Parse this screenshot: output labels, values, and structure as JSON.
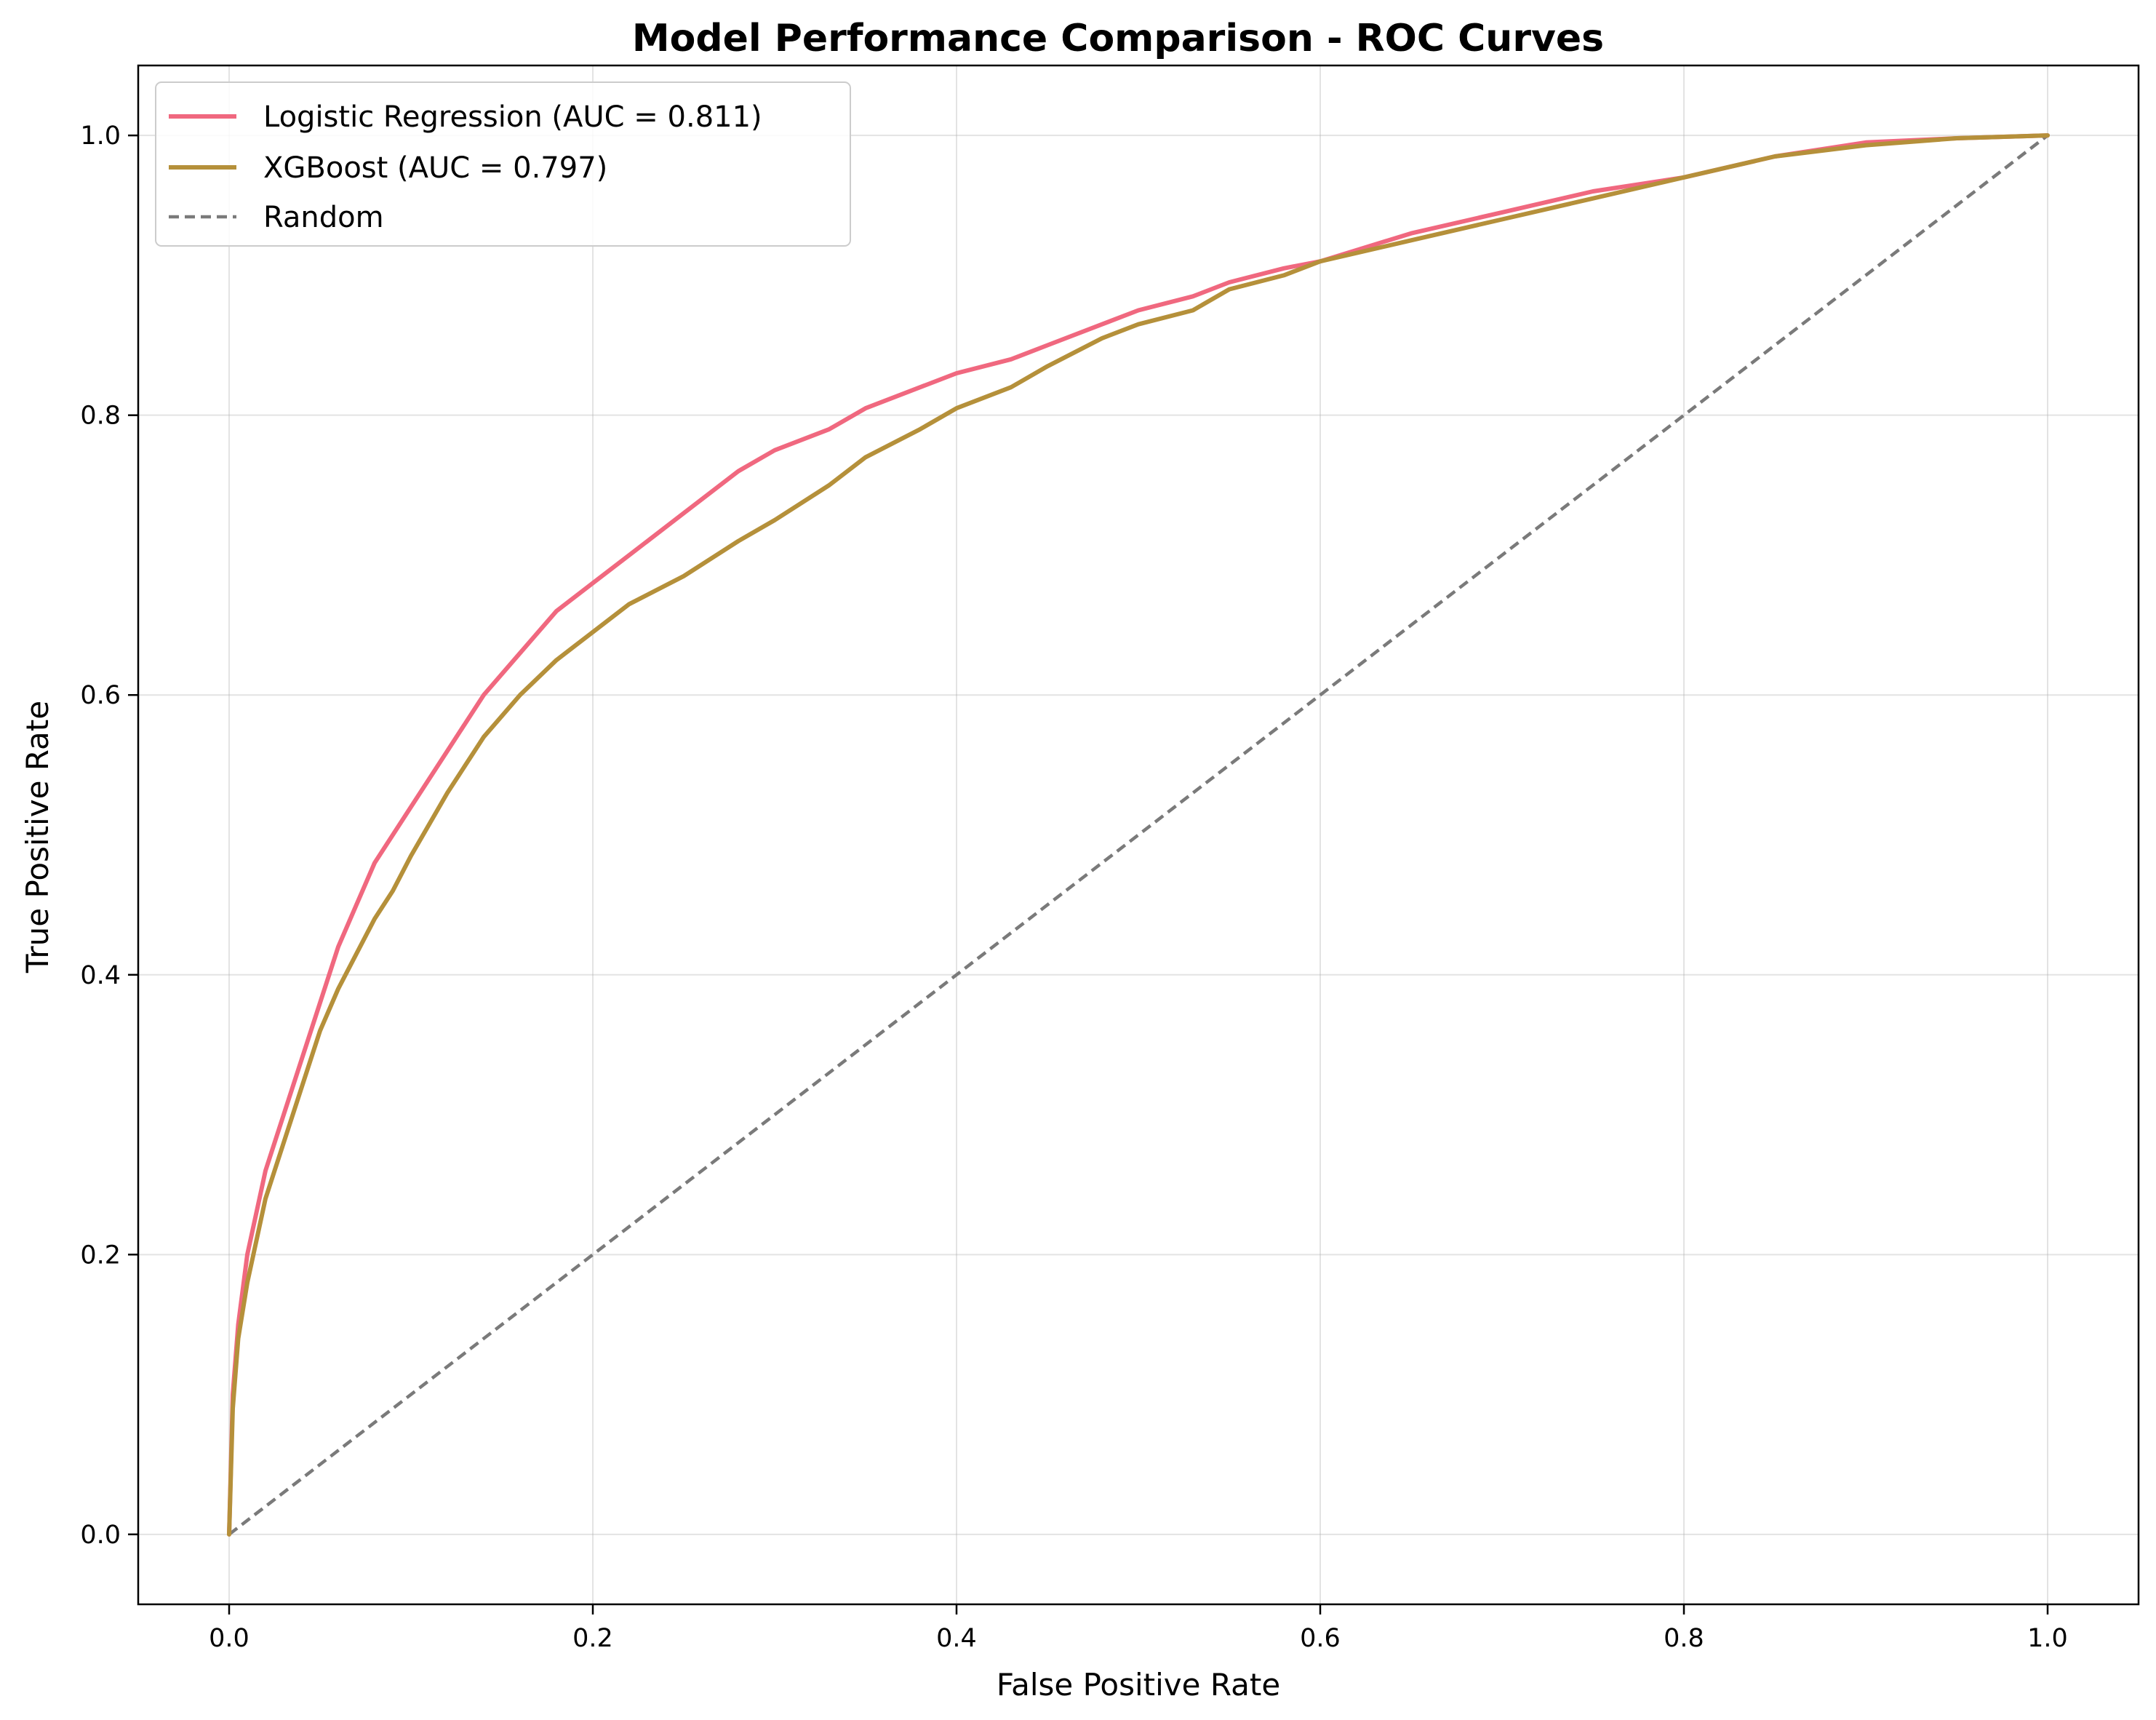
{
  "chart_data": {
    "type": "line",
    "title": "Model Performance Comparison - ROC Curves",
    "xlabel": "False Positive Rate",
    "ylabel": "True Positive Rate",
    "xlim": [
      -0.05,
      1.05
    ],
    "ylim": [
      -0.05,
      1.05
    ],
    "xticks": [
      0.0,
      0.2,
      0.4,
      0.6,
      0.8,
      1.0
    ],
    "yticks": [
      0.0,
      0.2,
      0.4,
      0.6,
      0.8,
      1.0
    ],
    "xtick_labels": [
      "0.0",
      "0.2",
      "0.4",
      "0.6",
      "0.8",
      "1.0"
    ],
    "ytick_labels": [
      "0.0",
      "0.2",
      "0.4",
      "0.6",
      "0.8",
      "1.0"
    ],
    "grid": true,
    "legend_position": "top-left",
    "series": [
      {
        "name": "Logistic Regression (AUC = 0.811)",
        "color": "#f0687f",
        "style": "solid",
        "x": [
          0,
          0.002,
          0.005,
          0.01,
          0.015,
          0.02,
          0.03,
          0.04,
          0.05,
          0.06,
          0.07,
          0.08,
          0.09,
          0.1,
          0.12,
          0.14,
          0.16,
          0.18,
          0.2,
          0.22,
          0.25,
          0.28,
          0.3,
          0.33,
          0.35,
          0.38,
          0.4,
          0.43,
          0.45,
          0.48,
          0.5,
          0.53,
          0.55,
          0.58,
          0.6,
          0.65,
          0.7,
          0.75,
          0.8,
          0.85,
          0.9,
          0.95,
          1.0
        ],
        "y": [
          0,
          0.1,
          0.15,
          0.2,
          0.23,
          0.26,
          0.3,
          0.34,
          0.38,
          0.42,
          0.45,
          0.48,
          0.5,
          0.52,
          0.56,
          0.6,
          0.63,
          0.66,
          0.68,
          0.7,
          0.73,
          0.76,
          0.775,
          0.79,
          0.805,
          0.82,
          0.83,
          0.84,
          0.85,
          0.865,
          0.875,
          0.885,
          0.895,
          0.905,
          0.91,
          0.93,
          0.945,
          0.96,
          0.97,
          0.985,
          0.995,
          0.998,
          1.0
        ]
      },
      {
        "name": "XGBoost (AUC = 0.797)",
        "color": "#b5903a",
        "style": "solid",
        "x": [
          0,
          0.002,
          0.005,
          0.01,
          0.015,
          0.02,
          0.03,
          0.04,
          0.05,
          0.06,
          0.07,
          0.08,
          0.09,
          0.1,
          0.12,
          0.14,
          0.16,
          0.18,
          0.2,
          0.22,
          0.25,
          0.28,
          0.3,
          0.33,
          0.35,
          0.38,
          0.4,
          0.43,
          0.45,
          0.48,
          0.5,
          0.53,
          0.55,
          0.58,
          0.6,
          0.65,
          0.7,
          0.75,
          0.8,
          0.85,
          0.9,
          0.95,
          1.0
        ],
        "y": [
          0,
          0.09,
          0.14,
          0.18,
          0.21,
          0.24,
          0.28,
          0.32,
          0.36,
          0.39,
          0.415,
          0.44,
          0.46,
          0.485,
          0.53,
          0.57,
          0.6,
          0.625,
          0.645,
          0.665,
          0.685,
          0.71,
          0.725,
          0.75,
          0.77,
          0.79,
          0.805,
          0.82,
          0.835,
          0.855,
          0.865,
          0.875,
          0.89,
          0.9,
          0.91,
          0.925,
          0.94,
          0.955,
          0.97,
          0.985,
          0.993,
          0.998,
          1.0
        ]
      },
      {
        "name": "Random",
        "color": "#7a7a7a",
        "style": "dashed",
        "x": [
          0,
          1
        ],
        "y": [
          0,
          1
        ]
      }
    ]
  }
}
